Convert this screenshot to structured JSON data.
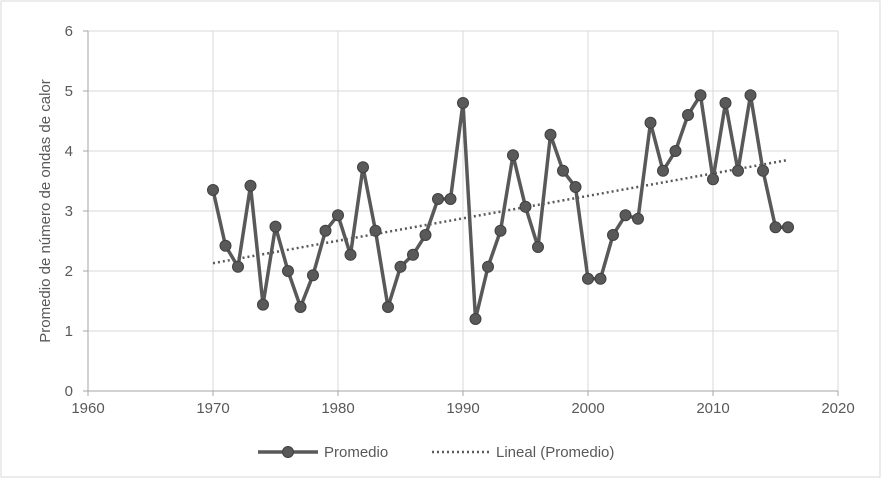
{
  "chart_data": {
    "type": "line",
    "title": "",
    "xlabel": "",
    "ylabel": "Promedio de número de ondas de calor",
    "xlim": [
      1960,
      2020
    ],
    "ylim": [
      0,
      6
    ],
    "xticks": [
      1960,
      1970,
      1980,
      1990,
      2000,
      2010,
      2020
    ],
    "yticks": [
      0,
      1,
      2,
      3,
      4,
      5,
      6
    ],
    "grid": true,
    "legend_position": "bottom",
    "series": [
      {
        "name": "Promedio",
        "style": "line-markers",
        "color": "#595959",
        "x": [
          1970,
          1971,
          1972,
          1973,
          1974,
          1975,
          1976,
          1977,
          1978,
          1979,
          1980,
          1981,
          1982,
          1983,
          1984,
          1985,
          1986,
          1987,
          1988,
          1989,
          1990,
          1991,
          1992,
          1993,
          1994,
          1995,
          1996,
          1997,
          1998,
          1999,
          2000,
          2001,
          2002,
          2003,
          2004,
          2005,
          2006,
          2007,
          2008,
          2009,
          2010,
          2011,
          2012,
          2013,
          2014,
          2015,
          2016
        ],
        "y": [
          3.35,
          2.42,
          2.07,
          3.42,
          1.44,
          2.74,
          2.0,
          1.4,
          1.93,
          2.67,
          2.93,
          2.27,
          3.73,
          2.67,
          1.4,
          2.07,
          2.27,
          2.6,
          3.2,
          3.2,
          4.8,
          1.2,
          2.07,
          2.67,
          3.93,
          3.07,
          2.4,
          4.27,
          3.67,
          3.4,
          1.87,
          1.87,
          2.6,
          2.93,
          2.87,
          4.47,
          3.67,
          4.0,
          4.6,
          4.93,
          3.53,
          4.8,
          3.67,
          4.93,
          3.67,
          2.73,
          2.73
        ]
      },
      {
        "name": "Lineal (Promedio)",
        "style": "dotted-trend",
        "color": "#595959",
        "x": [
          1970,
          2016
        ],
        "y": [
          2.13,
          3.85
        ]
      }
    ]
  }
}
